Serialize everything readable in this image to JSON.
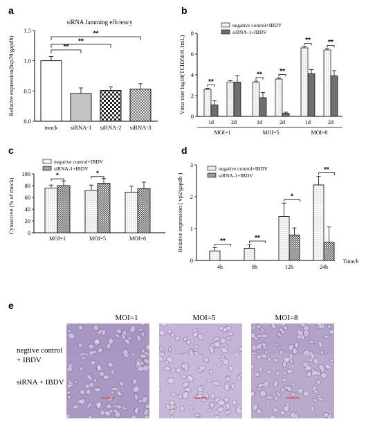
{
  "panels": {
    "a": "a",
    "b": "b",
    "c": "c",
    "d": "d",
    "e": "e"
  },
  "colors": {
    "gray": "#6f6f6f",
    "light": "#f2f2f2",
    "micro_base": "#b7a6c9",
    "scale_bar": "#d8202f"
  },
  "chart_data": [
    {
      "id": "a",
      "type": "bar",
      "title": "siRNA Jamming effciency",
      "ylabel": "Relative expression(hsp70/gapdh)",
      "xlabel": "",
      "categories": [
        "mock",
        "siRNA-1",
        "siRNA-2",
        "siRNA-3"
      ],
      "values": [
        1.0,
        0.46,
        0.51,
        0.53
      ],
      "errors": [
        0.07,
        0.09,
        0.06,
        0.09
      ],
      "ylim": [
        0,
        1.5
      ],
      "yticks": [
        "0.0",
        "0.5",
        "1.0",
        "1.5"
      ],
      "significance": [
        {
          "from": "mock",
          "to": "siRNA-1",
          "label": "**"
        },
        {
          "from": "mock",
          "to": "siRNA-2",
          "label": "**"
        },
        {
          "from": "mock",
          "to": "siRNA-3",
          "label": "**"
        }
      ],
      "grid": false
    },
    {
      "id": "b",
      "type": "bar",
      "title": "",
      "ylabel": "Virus titer log10(TCID50/0.1mL)",
      "xlabel": "",
      "categories": [
        "1d",
        "2d",
        "1d",
        "2d",
        "1d",
        "2d"
      ],
      "groups": [
        "MOI=1",
        "MOI=5",
        "MOI=8"
      ],
      "series": [
        {
          "name": "negative control+IBDV",
          "values": [
            2.6,
            3.3,
            3.3,
            3.6,
            6.6,
            6.4
          ],
          "errors": [
            0.1,
            0.15,
            0.1,
            0.1,
            0.1,
            0.1
          ]
        },
        {
          "name": "siRNA-1+IBDV",
          "values": [
            1.1,
            3.3,
            1.8,
            0.3,
            4.1,
            3.9
          ],
          "errors": [
            0.4,
            0.6,
            0.5,
            0.1,
            0.4,
            0.5
          ]
        }
      ],
      "ylim": [
        0,
        8
      ],
      "yticks": [
        "0",
        "2",
        "4",
        "6",
        "8"
      ],
      "significance": [
        "**",
        "**",
        "**",
        "**",
        "**"
      ],
      "legend": "top-left",
      "grid": false
    },
    {
      "id": "c",
      "type": "bar",
      "title": "",
      "ylabel": "Cytoactive (% of mock)",
      "xlabel": "",
      "categories": [
        "MOI=1",
        "MOI=5",
        "MOI=8"
      ],
      "series": [
        {
          "name": "negative control+IBDV",
          "values": [
            76,
            72,
            69
          ],
          "errors": [
            5,
            9,
            10
          ]
        },
        {
          "name": "siRNA-1+IBDV",
          "values": [
            80,
            84,
            75
          ],
          "errors": [
            8,
            8,
            11
          ]
        }
      ],
      "ylim": [
        0,
        100
      ],
      "yticks": [
        "0",
        "20",
        "40",
        "60",
        "80",
        "100"
      ],
      "significance": [
        "*",
        "*",
        ""
      ],
      "legend": "top-left",
      "grid": false
    },
    {
      "id": "d",
      "type": "bar",
      "title": "",
      "ylabel": "Relative expression ( vp2/gapdh )",
      "xlabel": "Time/h",
      "categories": [
        "4h",
        "8h",
        "12h",
        "24h"
      ],
      "series": [
        {
          "name": "negative control+IBDV",
          "values": [
            0.3,
            0.38,
            1.38,
            2.37
          ],
          "errors": [
            0.1,
            0.12,
            0.42,
            0.27
          ]
        },
        {
          "name": "siRNA-1+IBDV",
          "values": [
            0.0,
            0.0,
            0.8,
            0.57
          ],
          "errors": [
            0,
            0,
            0.22,
            0.48
          ]
        }
      ],
      "ylim": [
        0,
        3
      ],
      "yticks": [
        "0",
        "1",
        "2",
        "3"
      ],
      "significance": [
        "**",
        "**",
        "*",
        "**"
      ],
      "legend": "top-left",
      "grid": false
    }
  ],
  "micrographs": {
    "col_labels": [
      "MOI=1",
      "MOI=5",
      "MOI=8"
    ],
    "row_labels": [
      "negtive control\n+ IBDV",
      "siRNA + IBDV"
    ],
    "row1_line1": "negtive control",
    "row1_line2": "+ IBDV",
    "row2": "siRNA + IBDV"
  }
}
